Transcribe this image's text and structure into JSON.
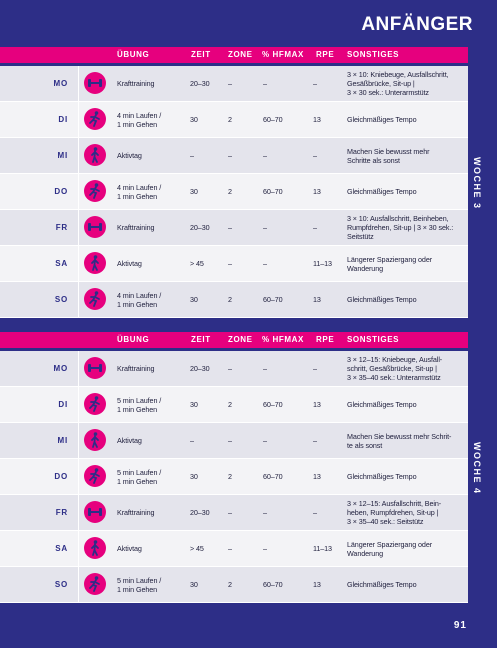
{
  "header": {
    "title": "ANFÄNGER"
  },
  "weeks": [
    {
      "label": "WOCHE 3",
      "columns": [
        "ÜBUNG",
        "ZEIT",
        "ZONE",
        "% HFMAX",
        "RPE",
        "SONSTIGES"
      ],
      "rows": [
        [
          "MO",
          "Krafttraining",
          "20–30",
          "–",
          "–",
          "–",
          "3 × 10: Kniebeuge, Ausfallschritt,\nGesäßbrücke, Sit-up |\n3 × 30 sek.: Unterarmstütz"
        ],
        [
          "DI",
          "4 min Laufen /\n1 min Gehen",
          "30",
          "2",
          "60–70",
          "13",
          "Gleichmäßiges Tempo"
        ],
        [
          "MI",
          "Aktivtag",
          "–",
          "–",
          "–",
          "–",
          "Machen Sie bewusst mehr\nSchritte als sonst"
        ],
        [
          "DO",
          "4 min Laufen /\n1 min Gehen",
          "30",
          "2",
          "60–70",
          "13",
          "Gleichmäßiges Tempo"
        ],
        [
          "FR",
          "Krafttraining",
          "20–30",
          "–",
          "–",
          "–",
          "3 × 10: Ausfallschritt, Beinheben,\nRumpfdrehen, Sit-up | 3 × 30 sek.:\nSeitstütz"
        ],
        [
          "SA",
          "Aktivtag",
          "> 45",
          "–",
          "–",
          "11–13",
          "Längerer Spaziergang oder\nWanderung"
        ],
        [
          "SO",
          "4 min Laufen /\n1 min Gehen",
          "30",
          "2",
          "60–70",
          "13",
          "Gleichmäßiges Tempo"
        ]
      ]
    },
    {
      "label": "WOCHE 4",
      "columns": [
        "ÜBUNG",
        "ZEIT",
        "ZONE",
        "% HFMAX",
        "RPE",
        "SONSTIGES"
      ],
      "rows": [
        [
          "MO",
          "Krafttraining",
          "20–30",
          "–",
          "–",
          "–",
          "3 × 12–15: Kniebeuge, Ausfall-\nschritt, Gesäßbrücke, Sit-up |\n3 × 35–40 sek.: Unterarmstütz"
        ],
        [
          "DI",
          "5 min Laufen /\n1 min Gehen",
          "30",
          "2",
          "60–70",
          "13",
          "Gleichmäßiges Tempo"
        ],
        [
          "MI",
          "Aktivtag",
          "–",
          "–",
          "–",
          "–",
          "Machen Sie bewusst mehr Schrit-\nte als sonst"
        ],
        [
          "DO",
          "5 min Laufen /\n1 min Gehen",
          "30",
          "2",
          "60–70",
          "13",
          "Gleichmäßiges Tempo"
        ],
        [
          "FR",
          "Krafttraining",
          "20–30",
          "–",
          "–",
          "–",
          "3 × 12–15: Ausfallschritt, Bein-\nheben, Rumpfdrehen, Sit-up |\n3 × 35–40 sek.: Seitstütz"
        ],
        [
          "SA",
          "Aktivtag",
          "> 45",
          "–",
          "–",
          "11–13",
          "Längerer Spaziergang oder\nWanderung"
        ],
        [
          "SO",
          "5 min Laufen /\n1 min Gehen",
          "30",
          "2",
          "60–70",
          "13",
          "Gleichmäßiges Tempo"
        ]
      ]
    }
  ],
  "footer": {
    "page": "91"
  }
}
